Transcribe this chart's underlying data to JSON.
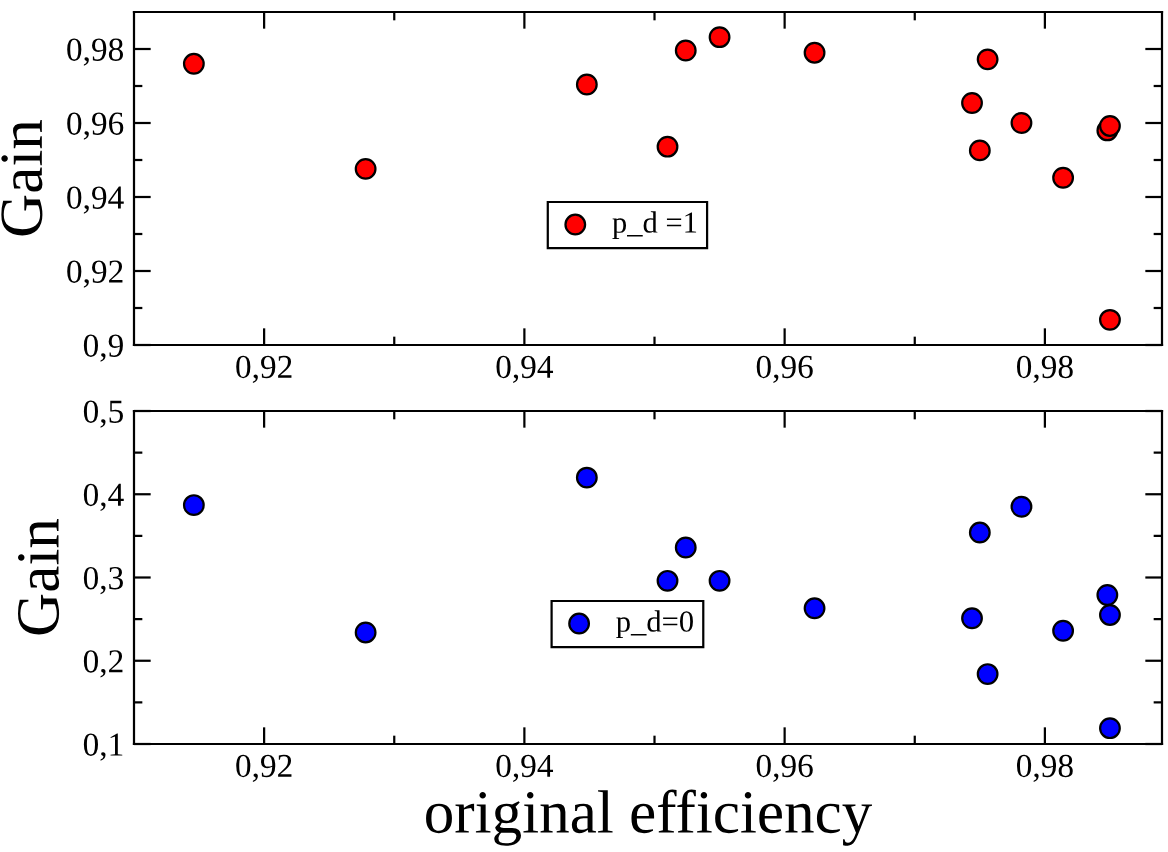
{
  "chart_data": [
    {
      "type": "scatter",
      "ylabel": "Gain",
      "legend": "center",
      "marker": "circle",
      "grid": false,
      "x": [
        0.9146,
        0.9278,
        0.9448,
        0.951,
        0.9524,
        0.955,
        0.9623,
        0.9744,
        0.975,
        0.9756,
        0.9782,
        0.9814,
        0.9848,
        0.985,
        0.985
      ],
      "series": [
        {
          "name": "p_d =1",
          "color": "#ff0000",
          "values": [
            0.976,
            0.9476,
            0.9704,
            0.9536,
            0.9796,
            0.9832,
            0.979,
            0.9654,
            0.9526,
            0.9772,
            0.96,
            0.9452,
            0.958,
            0.9592,
            0.9068
          ]
        }
      ],
      "xlim": [
        0.91,
        0.989
      ],
      "ylim": [
        0.9,
        0.99
      ],
      "xticks": [
        {
          "value": 0.92,
          "label": "0,92"
        },
        {
          "value": 0.93,
          "label": null
        },
        {
          "value": 0.94,
          "label": "0,94"
        },
        {
          "value": 0.95,
          "label": null
        },
        {
          "value": 0.96,
          "label": "0,96"
        },
        {
          "value": 0.97,
          "label": null
        },
        {
          "value": 0.98,
          "label": "0,98"
        }
      ],
      "yticks": [
        {
          "value": 0.9,
          "label": "0,9"
        },
        {
          "value": 0.91,
          "label": null
        },
        {
          "value": 0.92,
          "label": "0,92"
        },
        {
          "value": 0.93,
          "label": null
        },
        {
          "value": 0.94,
          "label": "0,94"
        },
        {
          "value": 0.95,
          "label": null
        },
        {
          "value": 0.96,
          "label": "0,96"
        },
        {
          "value": 0.97,
          "label": null
        },
        {
          "value": 0.98,
          "label": "0,98"
        }
      ]
    },
    {
      "type": "scatter",
      "ylabel": "Gain",
      "xlabel": "original efficiency",
      "legend": "center",
      "marker": "circle",
      "grid": false,
      "x": [
        0.9146,
        0.9278,
        0.9448,
        0.951,
        0.9524,
        0.955,
        0.9623,
        0.9744,
        0.975,
        0.9756,
        0.9782,
        0.9814,
        0.9848,
        0.985,
        0.985
      ],
      "series": [
        {
          "name": "p_d=0",
          "color": "#0000ff",
          "values": [
            0.387,
            0.234,
            0.42,
            0.296,
            0.336,
            0.296,
            0.263,
            0.251,
            0.354,
            0.184,
            0.385,
            0.236,
            0.279,
            0.255,
            0.119
          ]
        }
      ],
      "xlim": [
        0.91,
        0.989
      ],
      "ylim": [
        0.1,
        0.5
      ],
      "xticks": [
        {
          "value": 0.92,
          "label": "0,92"
        },
        {
          "value": 0.93,
          "label": null
        },
        {
          "value": 0.94,
          "label": "0,94"
        },
        {
          "value": 0.95,
          "label": null
        },
        {
          "value": 0.96,
          "label": "0,96"
        },
        {
          "value": 0.97,
          "label": null
        },
        {
          "value": 0.98,
          "label": "0,98"
        }
      ],
      "yticks": [
        {
          "value": 0.1,
          "label": "0,1"
        },
        {
          "value": 0.15,
          "label": null
        },
        {
          "value": 0.2,
          "label": "0,2"
        },
        {
          "value": 0.25,
          "label": null
        },
        {
          "value": 0.3,
          "label": "0,3"
        },
        {
          "value": 0.35,
          "label": null
        },
        {
          "value": 0.4,
          "label": "0,4"
        },
        {
          "value": 0.45,
          "label": null
        },
        {
          "value": 0.5,
          "label": "0,5"
        }
      ]
    }
  ]
}
